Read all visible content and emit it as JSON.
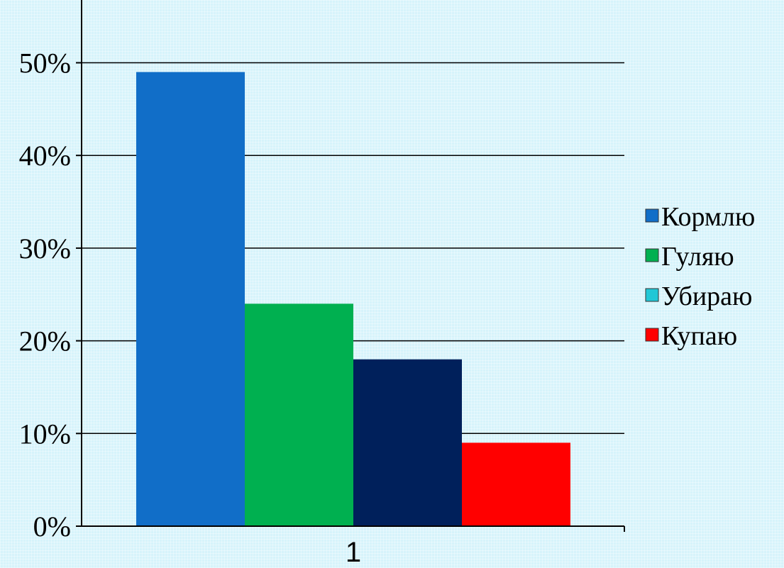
{
  "chart_data": {
    "type": "bar",
    "categories": [
      "1"
    ],
    "series": [
      {
        "name": "Кормлю",
        "values": [
          49
        ],
        "color": "#116ec8",
        "legend_color": "#116ec8"
      },
      {
        "name": "Гуляю",
        "values": [
          24
        ],
        "color": "#00b050",
        "legend_color": "#00b050"
      },
      {
        "name": "Убираю",
        "values": [
          18
        ],
        "color": "#00205b",
        "legend_color": "#21c7d6"
      },
      {
        "name": "Купаю",
        "values": [
          9
        ],
        "color": "#ff0000",
        "legend_color": "#ff0000"
      }
    ],
    "y_ticks": [
      "0%",
      "10%",
      "20%",
      "30%",
      "40%",
      "50%"
    ],
    "ylim": [
      0,
      60
    ],
    "unit": "%",
    "grid": true,
    "legend": "right"
  }
}
